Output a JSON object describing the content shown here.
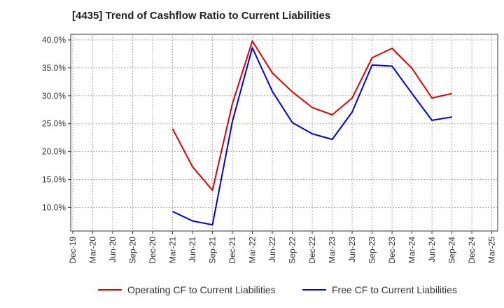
{
  "chart_data": {
    "type": "line",
    "title": "[4435]  Trend of Cashflow Ratio to Current Liabilities",
    "xlabel": "",
    "ylabel": "",
    "categories": [
      "Dec-19",
      "Mar-20",
      "Jun-20",
      "Sep-20",
      "Dec-20",
      "Mar-21",
      "Jun-21",
      "Sep-21",
      "Dec-21",
      "Mar-22",
      "Jun-22",
      "Sep-22",
      "Dec-22",
      "Mar-23",
      "Jun-23",
      "Sep-23",
      "Dec-23",
      "Mar-24",
      "Jun-24",
      "Sep-24",
      "Dec-24",
      "Mar-25"
    ],
    "ylim": [
      5.8,
      41.0
    ],
    "yticks": [
      10.0,
      15.0,
      20.0,
      25.0,
      30.0,
      35.0,
      40.0
    ],
    "ytick_labels": [
      "10.0%",
      "15.0%",
      "20.0%",
      "25.0%",
      "30.0%",
      "35.0%",
      "40.0%"
    ],
    "grid": true,
    "legend_position": "bottom",
    "series": [
      {
        "name": "Operating CF to Current Liabilities",
        "color": "#e00000",
        "values": [
          null,
          null,
          null,
          null,
          null,
          24.1,
          17.3,
          13.1,
          28.6,
          39.8,
          34.1,
          30.7,
          27.9,
          26.6,
          29.6,
          36.8,
          38.5,
          34.9,
          29.6,
          30.4,
          null,
          null
        ]
      },
      {
        "name": "Free CF to Current Liabilities",
        "color": "#0000e0",
        "values": [
          null,
          null,
          null,
          null,
          null,
          9.3,
          7.6,
          6.9,
          25.4,
          38.6,
          30.8,
          25.2,
          23.2,
          22.2,
          27.1,
          35.5,
          35.3,
          30.4,
          25.6,
          26.2,
          null,
          null
        ]
      }
    ]
  }
}
